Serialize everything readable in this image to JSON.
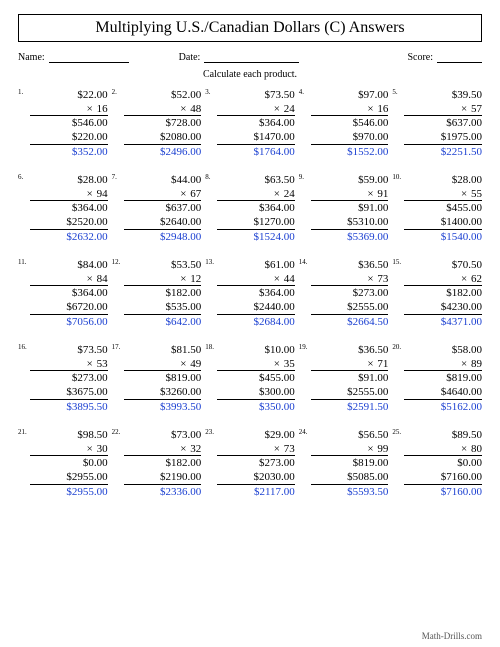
{
  "title": "Multiplying U.S./Canadian Dollars (C) Answers",
  "meta": {
    "name_label": "Name:",
    "date_label": "Date:",
    "score_label": "Score:"
  },
  "instruction": "Calculate each product.",
  "footer": "Math-Drills.com",
  "colors": {
    "answer": "#1a3fd1",
    "text": "#000000"
  },
  "layout": {
    "cols": 5,
    "rows": 5
  },
  "problems": [
    {
      "n": "1.",
      "a": "$22.00",
      "b": "16",
      "p": [
        "$546.00",
        "$220.00"
      ],
      "ans": "$352.00"
    },
    {
      "n": "2.",
      "a": "$52.00",
      "b": "48",
      "p": [
        "$728.00",
        "$2080.00"
      ],
      "ans": "$2496.00"
    },
    {
      "n": "3.",
      "a": "$73.50",
      "b": "24",
      "p": [
        "$364.00",
        "$1470.00"
      ],
      "ans": "$1764.00"
    },
    {
      "n": "4.",
      "a": "$97.00",
      "b": "16",
      "p": [
        "$546.00",
        "$970.00"
      ],
      "ans": "$1552.00"
    },
    {
      "n": "5.",
      "a": "$39.50",
      "b": "57",
      "p": [
        "$637.00",
        "$1975.00"
      ],
      "ans": "$2251.50"
    },
    {
      "n": "6.",
      "a": "$28.00",
      "b": "94",
      "p": [
        "$364.00",
        "$2520.00"
      ],
      "ans": "$2632.00"
    },
    {
      "n": "7.",
      "a": "$44.00",
      "b": "67",
      "p": [
        "$637.00",
        "$2640.00"
      ],
      "ans": "$2948.00"
    },
    {
      "n": "8.",
      "a": "$63.50",
      "b": "24",
      "p": [
        "$364.00",
        "$1270.00"
      ],
      "ans": "$1524.00"
    },
    {
      "n": "9.",
      "a": "$59.00",
      "b": "91",
      "p": [
        "$91.00",
        "$5310.00"
      ],
      "ans": "$5369.00"
    },
    {
      "n": "10.",
      "a": "$28.00",
      "b": "55",
      "p": [
        "$455.00",
        "$1400.00"
      ],
      "ans": "$1540.00"
    },
    {
      "n": "11.",
      "a": "$84.00",
      "b": "84",
      "p": [
        "$364.00",
        "$6720.00"
      ],
      "ans": "$7056.00"
    },
    {
      "n": "12.",
      "a": "$53.50",
      "b": "12",
      "p": [
        "$182.00",
        "$535.00"
      ],
      "ans": "$642.00"
    },
    {
      "n": "13.",
      "a": "$61.00",
      "b": "44",
      "p": [
        "$364.00",
        "$2440.00"
      ],
      "ans": "$2684.00"
    },
    {
      "n": "14.",
      "a": "$36.50",
      "b": "73",
      "p": [
        "$273.00",
        "$2555.00"
      ],
      "ans": "$2664.50"
    },
    {
      "n": "15.",
      "a": "$70.50",
      "b": "62",
      "p": [
        "$182.00",
        "$4230.00"
      ],
      "ans": "$4371.00"
    },
    {
      "n": "16.",
      "a": "$73.50",
      "b": "53",
      "p": [
        "$273.00",
        "$3675.00"
      ],
      "ans": "$3895.50"
    },
    {
      "n": "17.",
      "a": "$81.50",
      "b": "49",
      "p": [
        "$819.00",
        "$3260.00"
      ],
      "ans": "$3993.50"
    },
    {
      "n": "18.",
      "a": "$10.00",
      "b": "35",
      "p": [
        "$455.00",
        "$300.00"
      ],
      "ans": "$350.00"
    },
    {
      "n": "19.",
      "a": "$36.50",
      "b": "71",
      "p": [
        "$91.00",
        "$2555.00"
      ],
      "ans": "$2591.50"
    },
    {
      "n": "20.",
      "a": "$58.00",
      "b": "89",
      "p": [
        "$819.00",
        "$4640.00"
      ],
      "ans": "$5162.00"
    },
    {
      "n": "21.",
      "a": "$98.50",
      "b": "30",
      "p": [
        "$0.00",
        "$2955.00"
      ],
      "ans": "$2955.00"
    },
    {
      "n": "22.",
      "a": "$73.00",
      "b": "32",
      "p": [
        "$182.00",
        "$2190.00"
      ],
      "ans": "$2336.00"
    },
    {
      "n": "23.",
      "a": "$29.00",
      "b": "73",
      "p": [
        "$273.00",
        "$2030.00"
      ],
      "ans": "$2117.00"
    },
    {
      "n": "24.",
      "a": "$56.50",
      "b": "99",
      "p": [
        "$819.00",
        "$5085.00"
      ],
      "ans": "$5593.50"
    },
    {
      "n": "25.",
      "a": "$89.50",
      "b": "80",
      "p": [
        "$0.00",
        "$7160.00"
      ],
      "ans": "$7160.00"
    }
  ]
}
